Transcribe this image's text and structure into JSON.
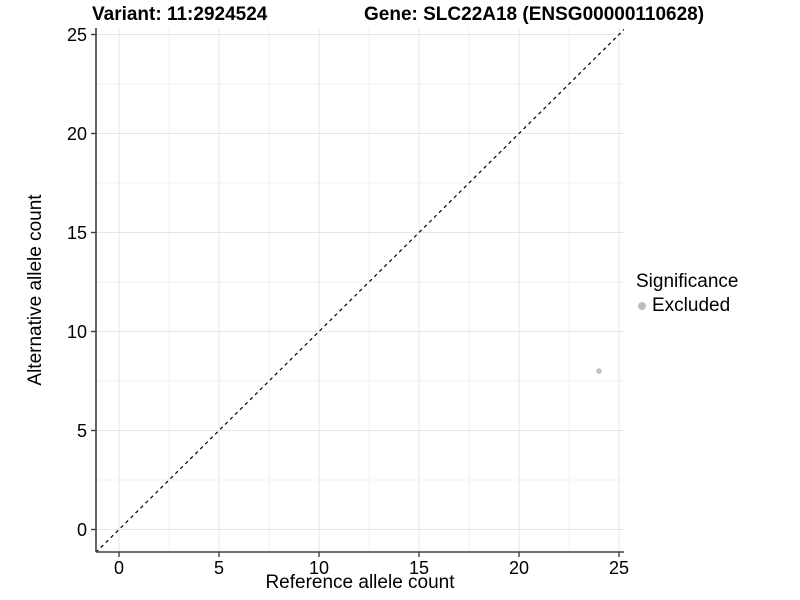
{
  "chart_data": {
    "type": "scatter",
    "title_left": "Variant: 11:2924524",
    "title_right": "Gene: SLC22A18 (ENSG00000110628)",
    "xlabel": "Reference allele count",
    "ylabel": "Alternative allele count",
    "x_ticks": [
      0,
      5,
      10,
      15,
      20,
      25
    ],
    "y_ticks": [
      0,
      5,
      10,
      15,
      20,
      25
    ],
    "x_minor_ticks": [
      2.5,
      7.5,
      12.5,
      17.5,
      22.5
    ],
    "y_minor_ticks": [
      2.5,
      7.5,
      12.5,
      17.5,
      22.5
    ],
    "xlim": [
      -1.15,
      25.25
    ],
    "ylim": [
      -1.14,
      25.33
    ],
    "grid": true,
    "points": [
      {
        "x": 24,
        "y": 8,
        "significance": "Excluded"
      }
    ],
    "reference_line": {
      "slope": 1,
      "intercept": 0,
      "style": "dashed",
      "color": "#000000"
    },
    "legend": {
      "position": "right",
      "title": "Significance",
      "items": [
        {
          "label": "Excluded",
          "color": "#bdbdbd"
        }
      ]
    },
    "colors": {
      "point": "#c2c2c2",
      "legend_dot": "#b5b5b5",
      "grid_major": "#e5e5e5",
      "grid_minor": "#f2f2f2",
      "axis_line": "#404040",
      "text": "#000000"
    }
  }
}
